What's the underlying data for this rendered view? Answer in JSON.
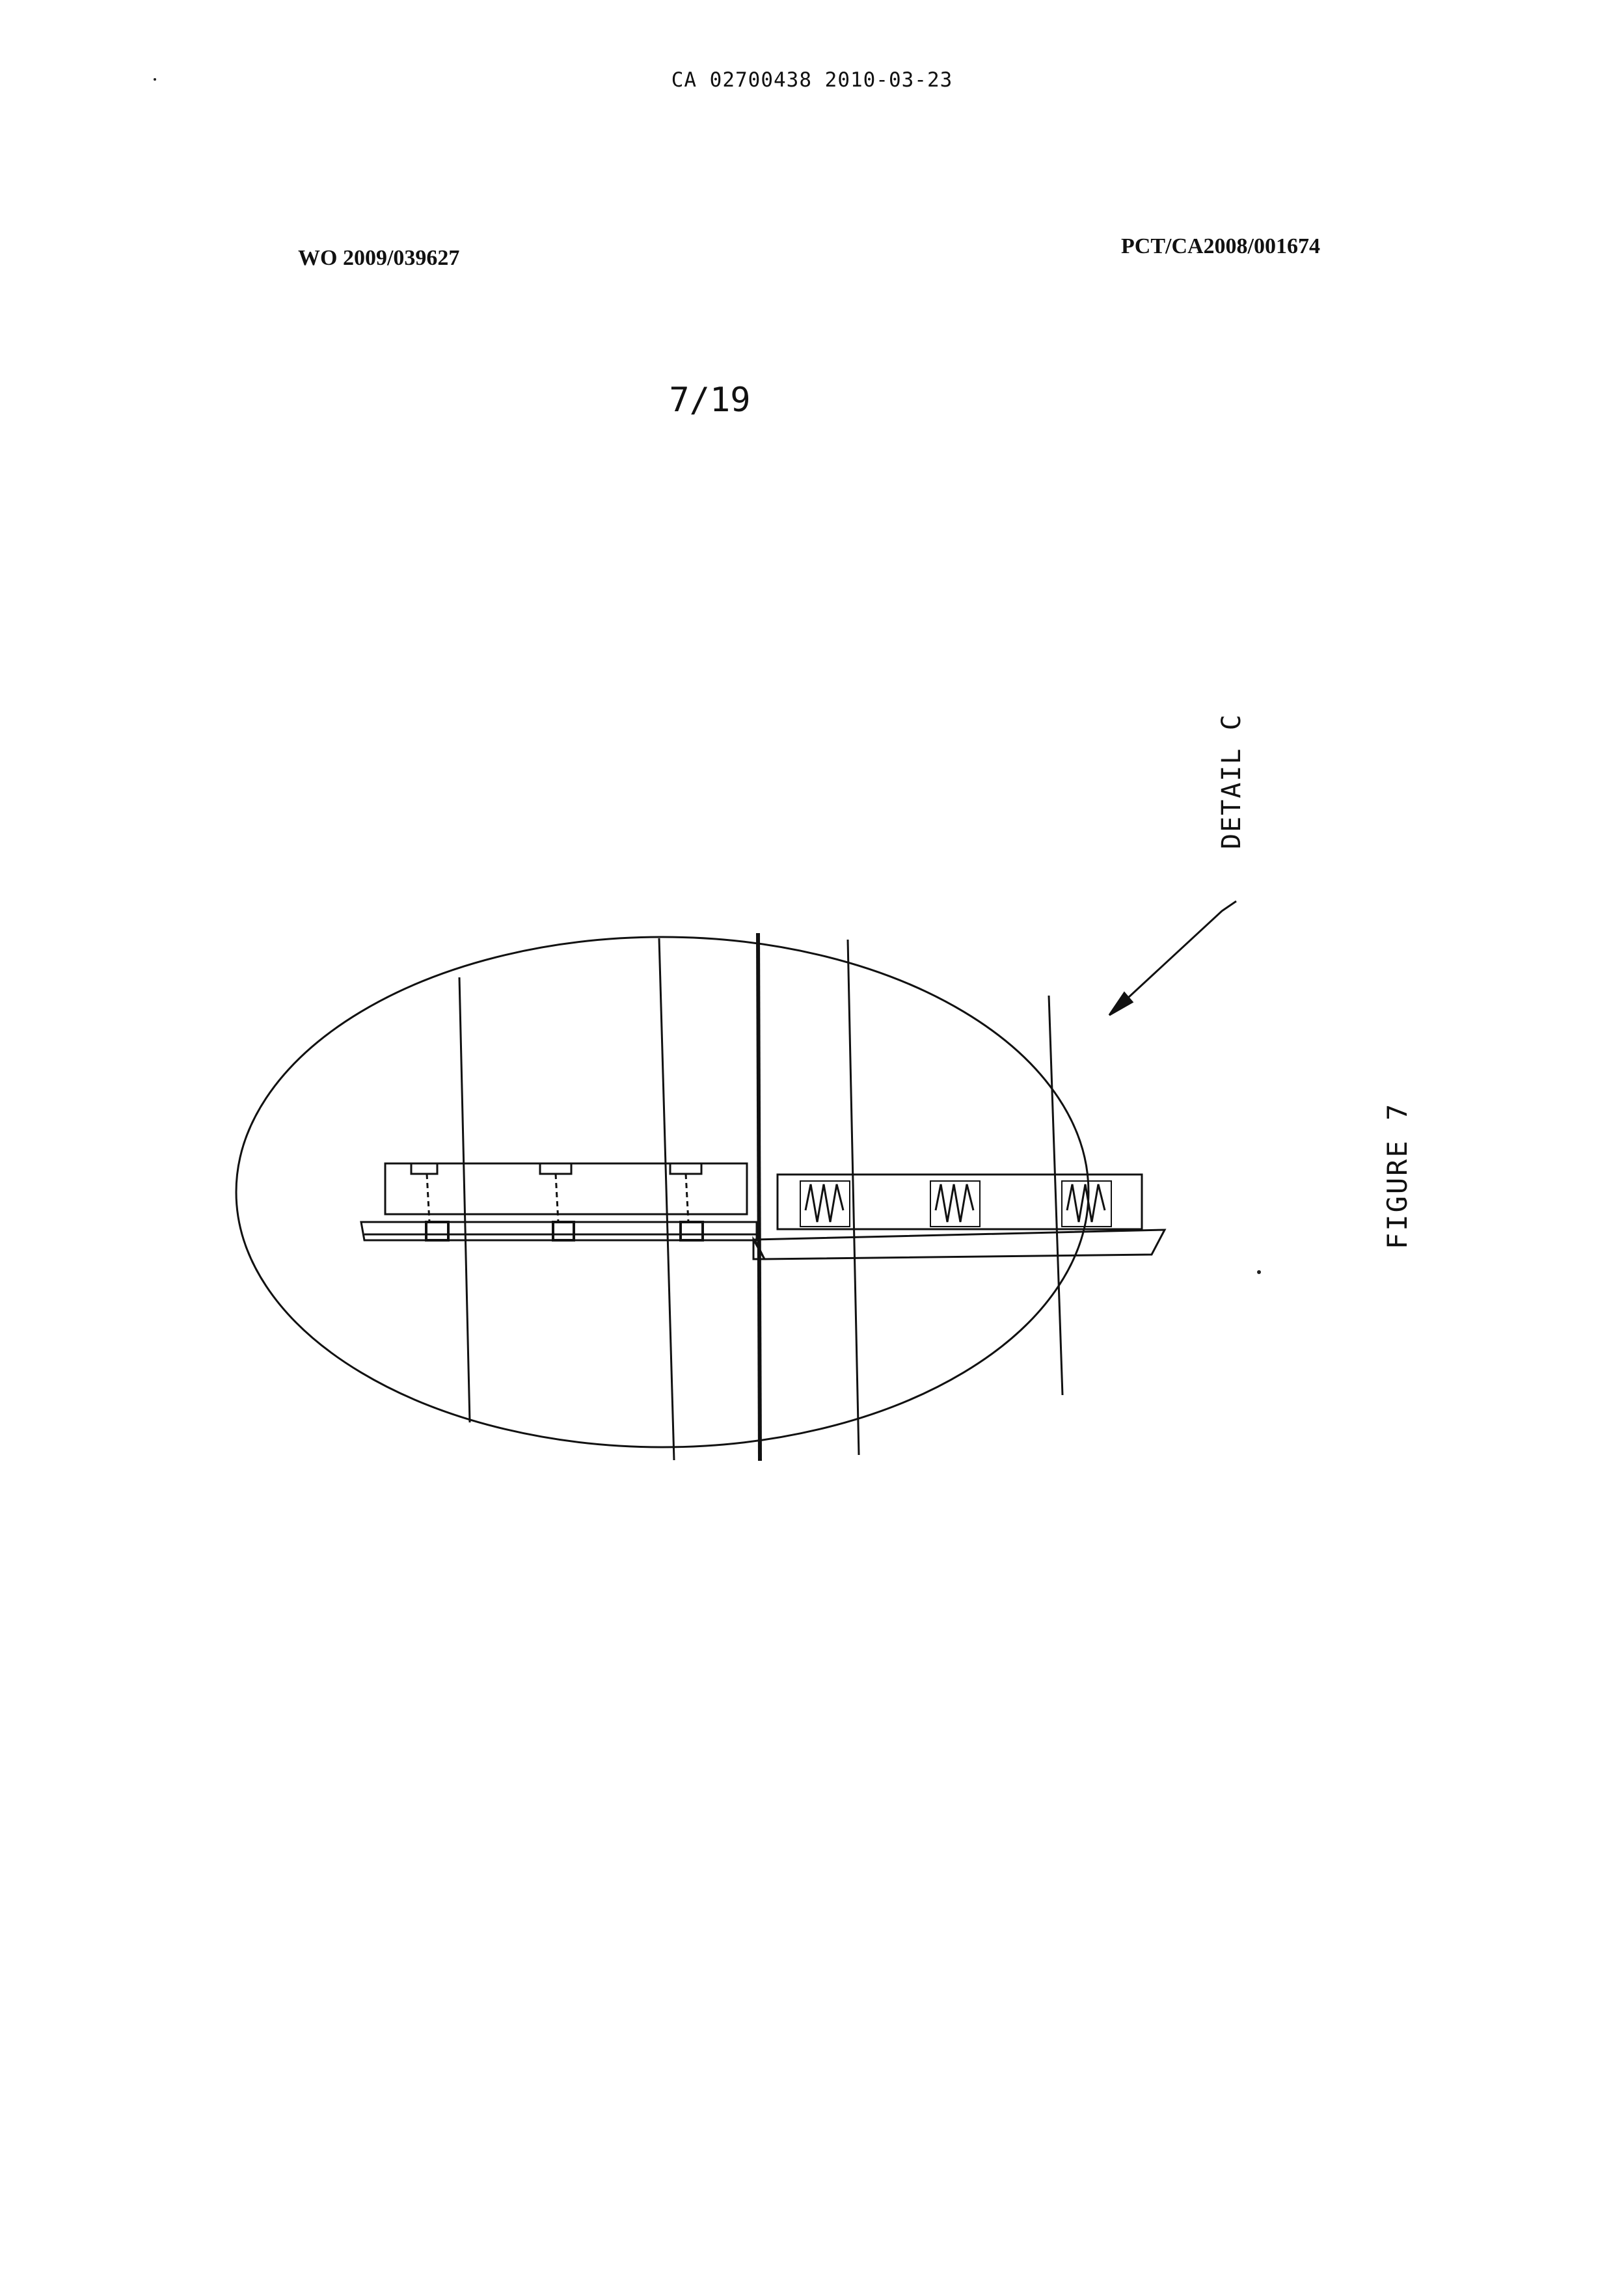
{
  "header": {
    "application_number": "CA 02700438 2010-03-23",
    "publication_number": "WO 2009/039627",
    "pct_number": "PCT/CA2008/001674"
  },
  "sheet": {
    "page_indicator": "7/19"
  },
  "drawing": {
    "detail_label": "DETAIL C",
    "figure_label": "FIGURE 7"
  }
}
